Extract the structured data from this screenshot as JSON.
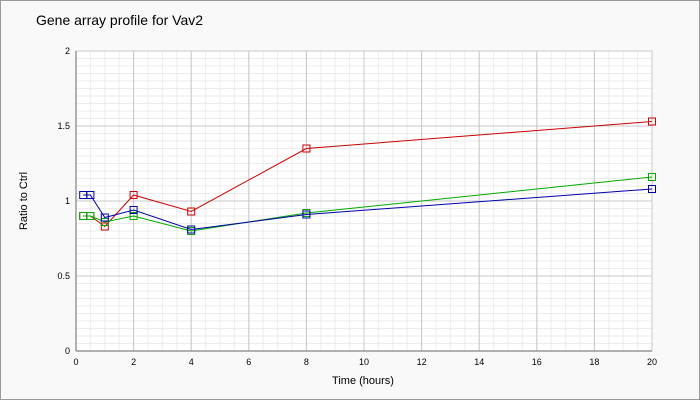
{
  "chart_data": {
    "type": "line",
    "title": "Gene array profile for Vav2",
    "xlabel": "Time (hours)",
    "ylabel": "Ratio to Ctrl",
    "xlim": [
      0,
      20
    ],
    "ylim": [
      0,
      2
    ],
    "x_ticks": [
      0,
      2,
      4,
      6,
      8,
      10,
      12,
      14,
      16,
      18,
      20
    ],
    "x_tick_labels": [
      "0",
      "2",
      "4",
      "6",
      "8",
      "10",
      "12",
      "14",
      "16",
      "18",
      "20"
    ],
    "y_ticks": [
      0,
      0.5,
      1,
      1.5,
      2
    ],
    "y_tick_labels": [
      "0",
      "0.5",
      "1",
      "1.5",
      "2"
    ],
    "grid": true,
    "legend": "none",
    "marker": "square",
    "series": [
      {
        "color": "#cc0000",
        "x": [
          0.25,
          0.5,
          1,
          2,
          4,
          8,
          20
        ],
        "values": [
          0.9,
          0.9,
          0.83,
          1.04,
          0.93,
          1.35,
          1.53
        ]
      },
      {
        "color": "#00aa00",
        "x": [
          0.25,
          0.5,
          1,
          2,
          4,
          8,
          20
        ],
        "values": [
          0.9,
          0.9,
          0.86,
          0.9,
          0.8,
          0.92,
          1.16
        ]
      },
      {
        "color": "#0000aa",
        "x": [
          0.25,
          0.5,
          1,
          2,
          4,
          8,
          20
        ],
        "values": [
          1.04,
          1.04,
          0.89,
          0.94,
          0.81,
          0.91,
          1.08
        ]
      }
    ]
  }
}
